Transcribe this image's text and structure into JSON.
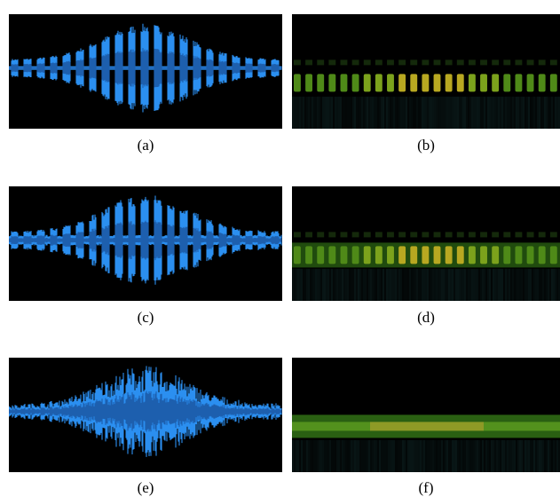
{
  "captions": [
    "(a)",
    "(b)",
    "(c)",
    "(d)",
    "(e)",
    "(f)"
  ]
}
